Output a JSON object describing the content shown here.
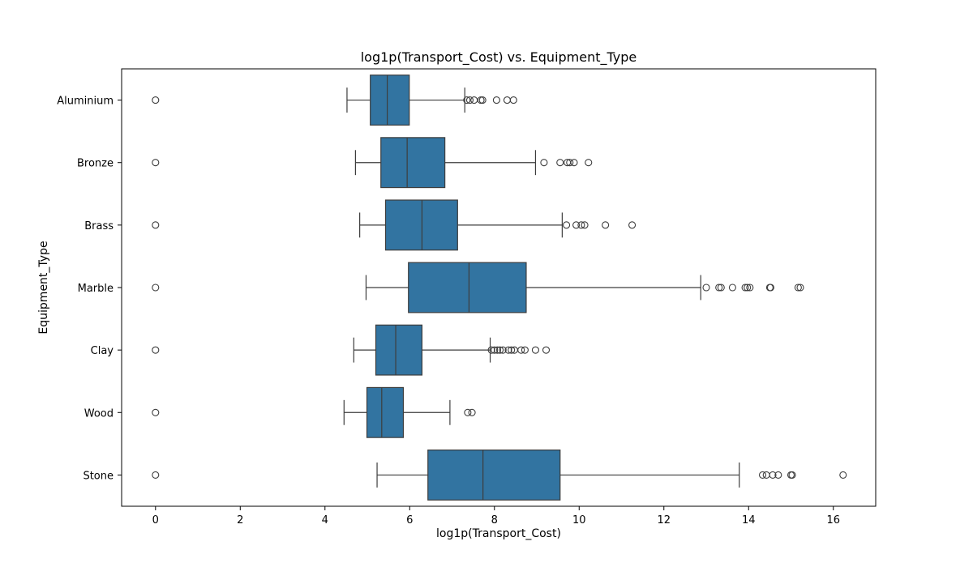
{
  "chart_data": {
    "type": "boxplot",
    "orientation": "horizontal",
    "title": "log1p(Transport_Cost) vs. Equipment_Type",
    "xlabel": "log1p(Transport_Cost)",
    "ylabel": "Equipment_Type",
    "xlim": [
      -0.8,
      17.0
    ],
    "xticks": [
      0,
      2,
      4,
      6,
      8,
      10,
      12,
      14,
      16
    ],
    "grid": false,
    "color": "#3274a1",
    "categories": [
      "Aluminium",
      "Bronze",
      "Brass",
      "Marble",
      "Clay",
      "Wood",
      "Stone"
    ],
    "boxes": [
      {
        "category": "Aluminium",
        "whisker_low": 4.52,
        "q1": 5.07,
        "median": 5.47,
        "q3": 5.99,
        "whisker_high": 7.3,
        "outliers": [
          0,
          7.35,
          7.42,
          7.52,
          7.68,
          7.72,
          8.05,
          8.3,
          8.45
        ]
      },
      {
        "category": "Bronze",
        "whisker_low": 4.72,
        "q1": 5.32,
        "median": 5.94,
        "q3": 6.83,
        "whisker_high": 8.97,
        "outliers": [
          0,
          9.17,
          9.55,
          9.72,
          9.78,
          9.88,
          10.22
        ]
      },
      {
        "category": "Brass",
        "whisker_low": 4.82,
        "q1": 5.43,
        "median": 6.29,
        "q3": 7.13,
        "whisker_high": 9.6,
        "outliers": [
          0,
          9.7,
          9.93,
          10.05,
          10.13,
          10.62,
          11.25
        ]
      },
      {
        "category": "Marble",
        "whisker_low": 4.97,
        "q1": 5.97,
        "median": 7.4,
        "q3": 8.75,
        "whisker_high": 12.87,
        "outliers": [
          0,
          13.0,
          13.3,
          13.35,
          13.62,
          13.92,
          13.97,
          14.03,
          14.5,
          14.52,
          15.17,
          15.22
        ]
      },
      {
        "category": "Clay",
        "whisker_low": 4.68,
        "q1": 5.2,
        "median": 5.67,
        "q3": 6.29,
        "whisker_high": 7.9,
        "outliers": [
          0,
          7.93,
          8.0,
          8.07,
          8.13,
          8.2,
          8.33,
          8.4,
          8.47,
          8.63,
          8.72,
          8.97,
          9.22
        ]
      },
      {
        "category": "Wood",
        "whisker_low": 4.45,
        "q1": 4.99,
        "median": 5.34,
        "q3": 5.85,
        "whisker_high": 6.95,
        "outliers": [
          0,
          7.37,
          7.47
        ]
      },
      {
        "category": "Stone",
        "whisker_low": 5.23,
        "q1": 6.43,
        "median": 7.73,
        "q3": 9.55,
        "whisker_high": 13.78,
        "outliers": [
          0,
          14.33,
          14.42,
          14.57,
          14.7,
          15.0,
          15.03,
          16.23
        ]
      }
    ]
  }
}
